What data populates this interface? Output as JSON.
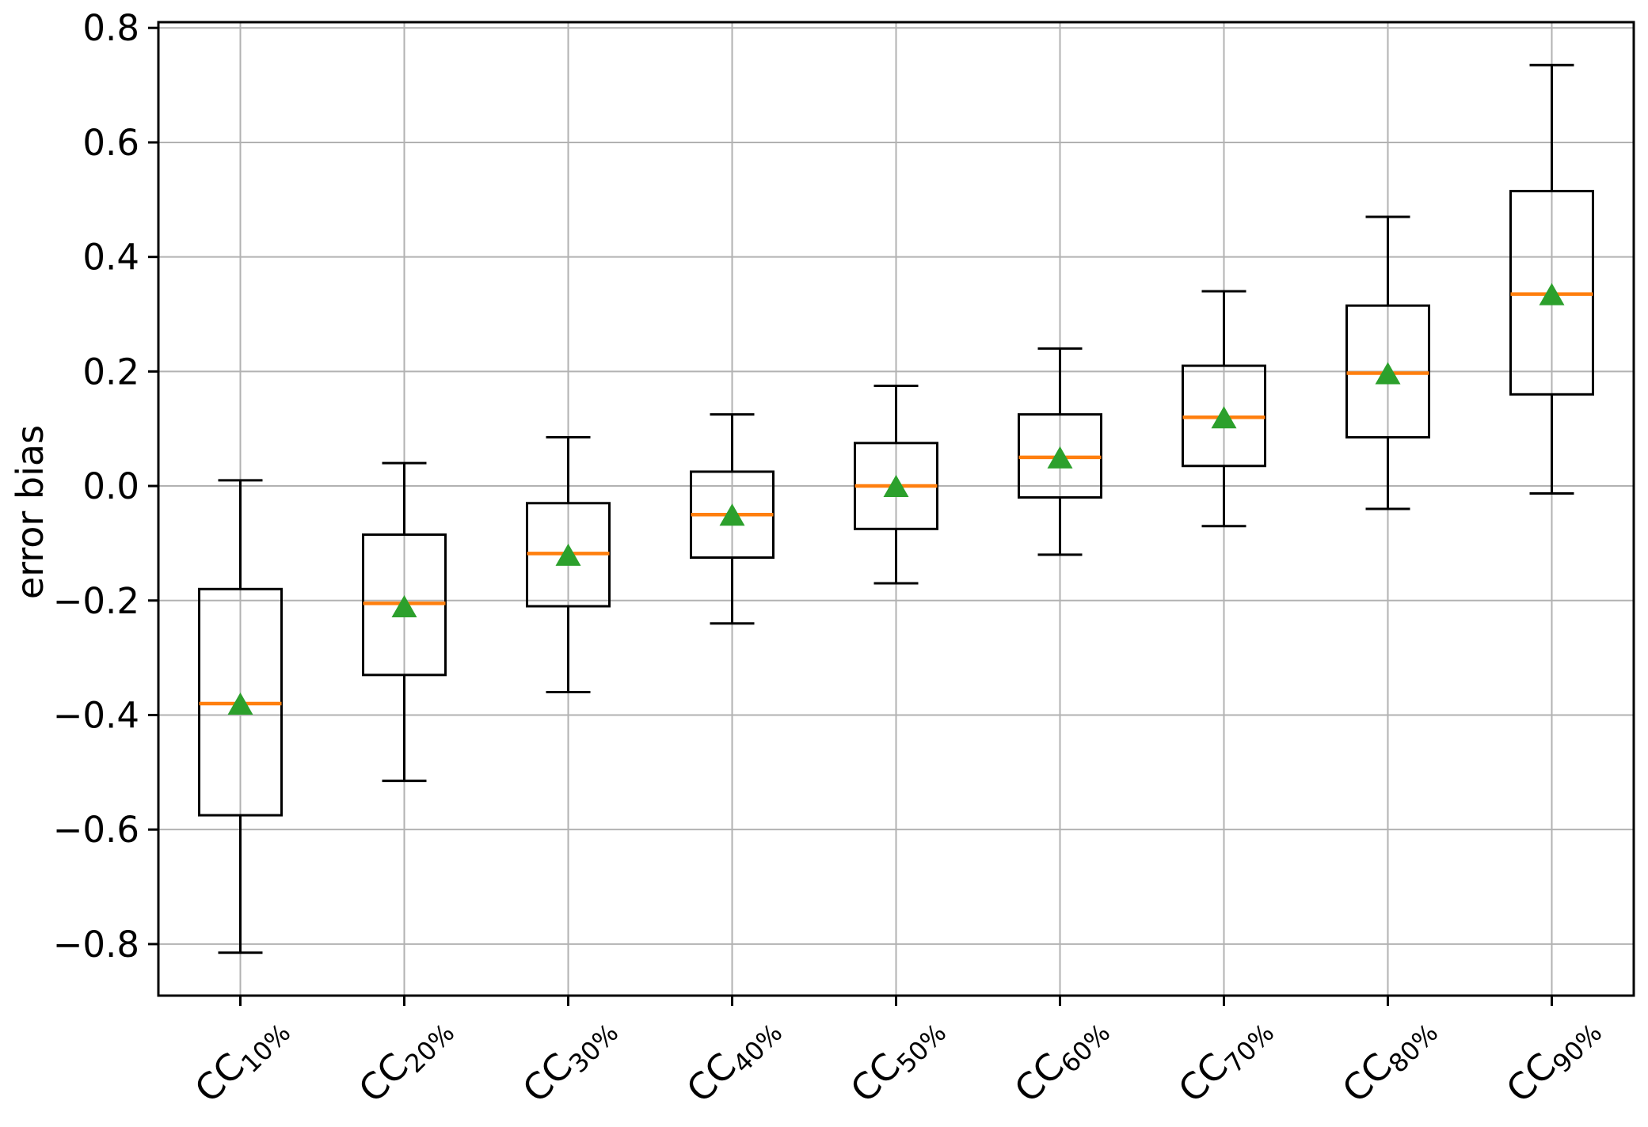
{
  "figure": {
    "background": "#ffffff"
  },
  "chart_data": {
    "type": "boxplot",
    "title": "",
    "xlabel": "",
    "ylabel": "error bias",
    "ylim": [
      -0.89,
      0.81
    ],
    "yticks": [
      0.8,
      0.6,
      0.4,
      0.2,
      0.0,
      -0.2,
      -0.4,
      -0.6,
      -0.8
    ],
    "grid": true,
    "legend_position": "none",
    "categories": [
      {
        "prefix": "CC",
        "subscript": "10%"
      },
      {
        "prefix": "CC",
        "subscript": "20%"
      },
      {
        "prefix": "CC",
        "subscript": "30%"
      },
      {
        "prefix": "CC",
        "subscript": "40%"
      },
      {
        "prefix": "CC",
        "subscript": "50%"
      },
      {
        "prefix": "CC",
        "subscript": "60%"
      },
      {
        "prefix": "CC",
        "subscript": "70%"
      },
      {
        "prefix": "CC",
        "subscript": "80%"
      },
      {
        "prefix": "CC",
        "subscript": "90%"
      }
    ],
    "boxes": [
      {
        "whislo": -0.815,
        "q1": -0.575,
        "med": -0.38,
        "mean": -0.38,
        "q3": -0.18,
        "whishi": 0.01
      },
      {
        "whislo": -0.515,
        "q1": -0.33,
        "med": -0.205,
        "mean": -0.21,
        "q3": -0.085,
        "whishi": 0.04
      },
      {
        "whislo": -0.36,
        "q1": -0.21,
        "med": -0.118,
        "mean": -0.12,
        "q3": -0.03,
        "whishi": 0.085
      },
      {
        "whislo": -0.24,
        "q1": -0.125,
        "med": -0.05,
        "mean": -0.05,
        "q3": 0.025,
        "whishi": 0.125
      },
      {
        "whislo": -0.17,
        "q1": -0.075,
        "med": 0.0,
        "mean": 0.0,
        "q3": 0.075,
        "whishi": 0.175
      },
      {
        "whislo": -0.12,
        "q1": -0.02,
        "med": 0.05,
        "mean": 0.05,
        "q3": 0.125,
        "whishi": 0.24
      },
      {
        "whislo": -0.07,
        "q1": 0.035,
        "med": 0.12,
        "mean": 0.12,
        "q3": 0.21,
        "whishi": 0.34
      },
      {
        "whislo": -0.04,
        "q1": 0.085,
        "med": 0.197,
        "mean": 0.197,
        "q3": 0.315,
        "whishi": 0.47
      },
      {
        "whislo": -0.013,
        "q1": 0.16,
        "med": 0.335,
        "mean": 0.335,
        "q3": 0.515,
        "whishi": 0.735
      }
    ],
    "mean_marker_shape": "triangle-up",
    "colors": {
      "box": "#000000",
      "whisker": "#000000",
      "median": "#ff7f0e",
      "mean_marker": "#2ca02c",
      "grid": "#b2b2b2",
      "spine": "#000000",
      "tick_label": "#000000"
    }
  }
}
